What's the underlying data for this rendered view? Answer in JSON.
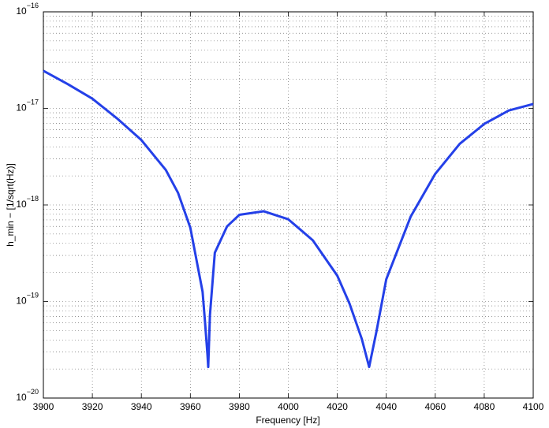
{
  "chart_data": {
    "type": "line",
    "x_label": "Frequency [Hz]",
    "y_label": "h_min − [1/sqrt(Hz)]",
    "x": [
      3900,
      3910,
      3920,
      3930,
      3940,
      3950,
      3955,
      3960,
      3965,
      3966,
      3967,
      3967.3,
      3968,
      3970,
      3975,
      3980,
      3990,
      4000,
      4010,
      4020,
      4025,
      4030,
      4033,
      4036,
      4040,
      4050,
      4060,
      4070,
      4080,
      4090,
      4100
    ],
    "series": [
      {
        "color": "#2440e8",
        "values": [
          2.45e-17,
          1.78e-17,
          1.26e-17,
          7.9e-18,
          4.7e-18,
          2.3e-18,
          1.33e-18,
          5.8e-19,
          1.26e-19,
          6.1e-20,
          2.8e-20,
          2.1e-20,
          7.2e-20,
          3.2e-19,
          6e-19,
          7.9e-19,
          8.6e-19,
          7.1e-19,
          4.3e-19,
          1.85e-19,
          9.5e-20,
          4.1e-20,
          2.1e-20,
          4.9e-20,
          1.7e-19,
          7.6e-19,
          2.1e-18,
          4.3e-18,
          6.9e-18,
          9.5e-18,
          1.11e-17
        ]
      }
    ],
    "xlim": [
      3900,
      4100
    ],
    "xticks": [
      3900,
      3920,
      3940,
      3960,
      3980,
      4000,
      4020,
      4040,
      4060,
      4080,
      4100
    ],
    "ylim": [
      1e-20,
      1e-16
    ],
    "yscale": "log",
    "yticks": [
      {
        "value": 1e-20,
        "label": "10-20"
      },
      {
        "value": 1e-19,
        "label": "10-19"
      },
      {
        "value": 1e-18,
        "label": "10-18"
      },
      {
        "value": 1e-17,
        "label": "10-17"
      },
      {
        "value": 1e-16,
        "label": "10-16"
      }
    ],
    "minor_yticks": [
      2e-20,
      3e-20,
      4e-20,
      5e-20,
      6e-20,
      7e-20,
      8e-20,
      9e-20,
      2e-19,
      3e-19,
      4e-19,
      5e-19,
      6e-19,
      7e-19,
      8e-19,
      9e-19,
      2e-18,
      3e-18,
      4e-18,
      5e-18,
      6e-18,
      7e-18,
      8e-18,
      9e-18,
      2e-17,
      3e-17,
      4e-17,
      5e-17,
      6e-17,
      7e-17,
      8e-17,
      9e-17
    ],
    "grid": true
  }
}
